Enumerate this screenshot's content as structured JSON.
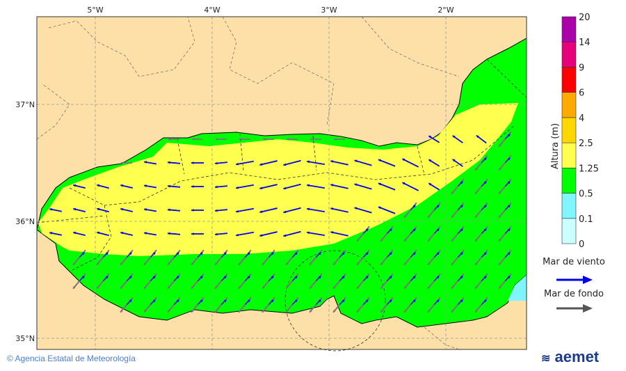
{
  "axes": {
    "lon_ticks": [
      "5°W",
      "4°W",
      "3°W",
      "2°W"
    ],
    "lat_ticks": [
      "37°N",
      "36°N",
      "35°N"
    ]
  },
  "legend": {
    "title": "Altura (m)",
    "levels": [
      "0",
      "0.1",
      "0.5",
      "1.25",
      "2.5",
      "4",
      "6",
      "9",
      "14",
      "20"
    ],
    "colors": [
      "#ccffff",
      "#80f4ff",
      "#00ff00",
      "#ffff50",
      "#ffd700",
      "#ffaa00",
      "#ff0000",
      "#e6007a",
      "#aa00aa"
    ],
    "wind_sea_label": "Mar de viento",
    "swell_label": "Mar de fondo",
    "wind_sea_color": "#0000ee",
    "swell_color": "#555555"
  },
  "colors": {
    "land": "#fde0a8",
    "sea_low": "#00ff00",
    "sea_mid": "#ffff50"
  },
  "footer": {
    "copyright": "© Agencia Estatal de Meteorología",
    "logo": "aemet"
  }
}
